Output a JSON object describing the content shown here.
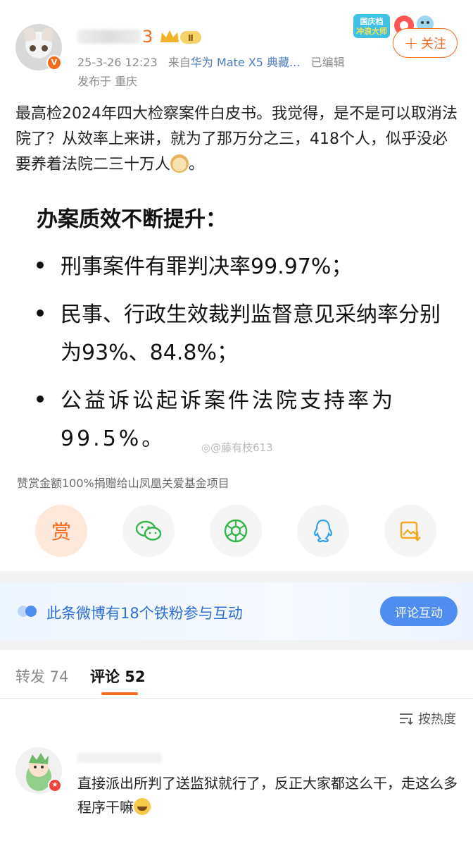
{
  "post": {
    "author_name": "",
    "level_badge": "Ⅱ",
    "verified_mark": "V",
    "timestamp": "25-3-26 12:23",
    "source_prefix": "来自",
    "source_device": "华为 Mate X5 典藏...",
    "edited": "已编辑",
    "location": "发布于 重庆",
    "follow_label": "关注",
    "promo_badge": "国庆档冲浪大师",
    "text_before_emoji": "最高检2024年四大检察案件白皮书。我觉得，是不是可以取消法院了？从效率上来讲，就为了那万分之三，418个人，似乎没必要养着法院二三十万人",
    "text_after_emoji": "。",
    "image": {
      "title": "办案质效不断提升：",
      "bullets": [
        "刑事案件有罪判决率99.97%；",
        "民事、行政生效裁判监督意见采纳率分别为93%、84.8%；",
        "公益诉讼起诉案件法院支持率为99.5%。"
      ],
      "watermark": "@藤有枝613"
    },
    "donate_note": "赞赏金额100%捐赠给山凤凰关爱基金项目",
    "reward_label": "赏"
  },
  "share_icons": [
    "reward-icon",
    "wechat-icon",
    "moments-icon",
    "qq-icon",
    "save-image-icon"
  ],
  "interaction": {
    "fans_text": "此条微博有18个铁粉参与互动",
    "comment_button": "评论互动"
  },
  "tabs": {
    "repost": "转发 74",
    "comment": "评论 52"
  },
  "sort_label": "按热度",
  "comment": {
    "text_before_emoji": "直接派出所判了送监狱就行了，反正大家都这么干，走这么多程序干嘛"
  },
  "colors": {
    "accent": "#f26b1d",
    "link_blue": "#2d6fd6",
    "button_blue": "#4f8ef0"
  }
}
